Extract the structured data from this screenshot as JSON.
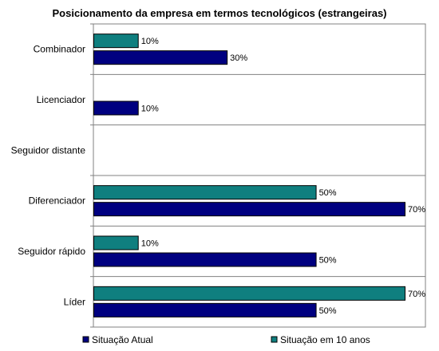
{
  "chart_data": {
    "type": "bar",
    "orientation": "horizontal",
    "title": "Posicionamento da empresa em termos tecnológicos (estrangeiras)",
    "xlabel": "",
    "ylabel": "",
    "xlim": [
      0,
      0.7
    ],
    "grid": "horizontal-separators",
    "legend_position": "bottom",
    "categories": [
      "Combinador",
      "Licenciador",
      "Seguidor distante",
      "Diferenciador",
      "Seguidor rápido",
      "Líder"
    ],
    "series": [
      {
        "name": "Situação em 10 anos",
        "color": "#0f7f7f",
        "values": [
          0.1,
          null,
          null,
          0.5,
          0.1,
          0.7
        ],
        "labels": [
          "10%",
          "",
          "",
          "50%",
          "10%",
          "70%"
        ]
      },
      {
        "name": "Situação Atual",
        "color": "#000080",
        "values": [
          0.3,
          0.1,
          null,
          0.7,
          0.5,
          0.5
        ],
        "labels": [
          "30%",
          "10%",
          "",
          "70%",
          "50%",
          "50%"
        ]
      }
    ],
    "legend": [
      {
        "name": "Situação Atual",
        "color": "#000080"
      },
      {
        "name": "Situação em 10 anos",
        "color": "#0f7f7f"
      }
    ]
  }
}
